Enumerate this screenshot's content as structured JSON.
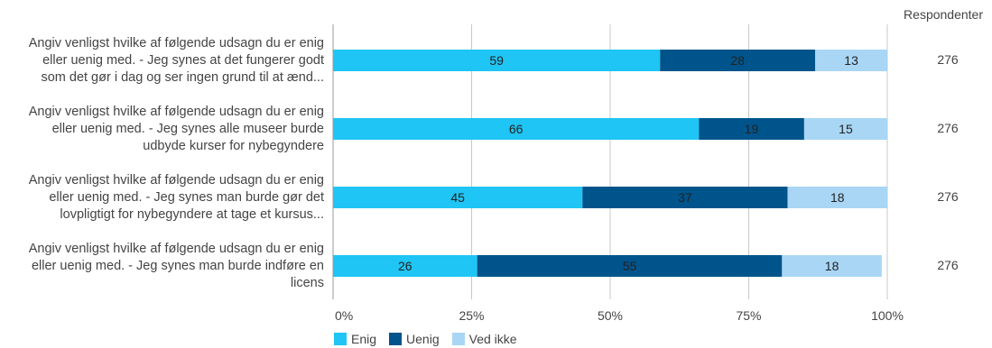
{
  "chart_data": {
    "type": "bar",
    "orientation": "horizontal",
    "stacked": true,
    "categories": [
      "Angiv venligst hvilke af følgende udsagn du er enig eller uenig med. - Jeg synes at det fungerer godt som det gør i dag og ser ingen grund til at ænd...",
      "Angiv venligst hvilke af følgende udsagn du er enig eller uenig med. - Jeg synes alle museer burde udbyde kurser for nybegyndere",
      "Angiv venligst hvilke af følgende udsagn du er enig eller uenig med. - Jeg synes man burde gør det lovpligtigt for nybegyndere at tage et kursus...",
      "Angiv venligst hvilke af følgende udsagn du er enig eller uenig med. - Jeg synes man burde indføre en licens"
    ],
    "category_lines": [
      [
        "Angiv venligst hvilke af følgende udsagn du er enig",
        "eller uenig med. - Jeg synes at det fungerer godt",
        "som det gør i dag og ser ingen grund til at ænd..."
      ],
      [
        "Angiv venligst hvilke af følgende udsagn du er enig",
        "eller uenig med. - Jeg synes alle museer burde",
        "udbyde kurser for nybegyndere"
      ],
      [
        "Angiv venligst hvilke af følgende udsagn du er enig",
        "eller uenig med. - Jeg synes man burde gør det",
        "lovpligtigt for nybegyndere at tage et kursus..."
      ],
      [
        "Angiv venligst hvilke af følgende udsagn du er enig",
        "eller uenig med. - Jeg synes man burde indføre en",
        "licens"
      ]
    ],
    "series": [
      {
        "name": "Enig",
        "color": "#1fc5f4",
        "values": [
          59,
          66,
          45,
          26
        ]
      },
      {
        "name": "Uenig",
        "color": "#00548c",
        "values": [
          28,
          19,
          37,
          55
        ]
      },
      {
        "name": "Ved ikke",
        "color": "#a9d6f5",
        "values": [
          13,
          15,
          18,
          18
        ]
      }
    ],
    "xlim": [
      0,
      100
    ],
    "x_ticks": [
      "0%",
      "25%",
      "50%",
      "75%",
      "100%"
    ],
    "x_tick_values": [
      0,
      25,
      50,
      75,
      100
    ],
    "grid": true,
    "legend_position": "bottom-left",
    "respondents_header": "Respondenter",
    "respondents": [
      276,
      276,
      276,
      276
    ]
  }
}
